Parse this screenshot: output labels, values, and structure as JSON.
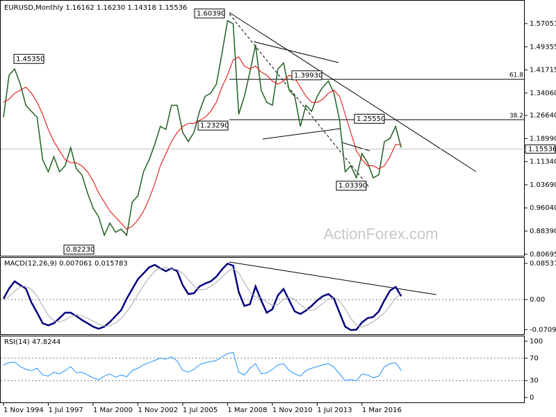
{
  "chart_data": [
    {
      "type": "line",
      "title": "EURUSD,Monthly  1.16162 1.16230 1.14318 1.15536",
      "categories": [
        "1 Nov 1994",
        null,
        null,
        null,
        null,
        null,
        null,
        null,
        "1 Jul 1997",
        null,
        null,
        null,
        null,
        null,
        null,
        null,
        "1 Mar 2000",
        null,
        null,
        null,
        null,
        null,
        null,
        null,
        "1 Nov 2002",
        null,
        null,
        null,
        null,
        null,
        null,
        null,
        "1 Jul 2005",
        null,
        null,
        null,
        null,
        null,
        null,
        null,
        "1 Mar 2008",
        null,
        null,
        null,
        null,
        null,
        null,
        null,
        "1 Nov 2010",
        null,
        null,
        null,
        null,
        null,
        null,
        null,
        "1 Jul 2013",
        null,
        null,
        null,
        null,
        null,
        null,
        null,
        "1 Mar 2016",
        null,
        null,
        null,
        null,
        null,
        null,
        null
      ],
      "series": [
        {
          "color": "#1f5f1f",
          "values": [
            1.26,
            1.4,
            1.42,
            1.37,
            1.3,
            1.28,
            1.26,
            1.12,
            1.08,
            1.13,
            1.08,
            1.1,
            1.16,
            1.09,
            1.07,
            1.01,
            0.96,
            0.93,
            0.87,
            0.91,
            0.88,
            0.89,
            0.87,
            0.98,
            1.0,
            1.08,
            1.12,
            1.17,
            1.23,
            1.22,
            1.3,
            1.3,
            1.21,
            1.18,
            1.21,
            1.28,
            1.33,
            1.34,
            1.37,
            1.47,
            1.58,
            1.57,
            1.27,
            1.33,
            1.41,
            1.5,
            1.35,
            1.31,
            1.3,
            1.42,
            1.44,
            1.35,
            1.33,
            1.23,
            1.3,
            1.28,
            1.33,
            1.36,
            1.38,
            1.34,
            1.25,
            1.08,
            1.1,
            1.06,
            1.14,
            1.11,
            1.06,
            1.07,
            1.18,
            1.19,
            1.23,
            1.16
          ]
        },
        {
          "color": "#e00000",
          "values": [
            1.31,
            1.32,
            1.34,
            1.35,
            1.36,
            1.34,
            1.31,
            1.27,
            1.22,
            1.18,
            1.15,
            1.12,
            1.11,
            1.11,
            1.1,
            1.08,
            1.05,
            1.01,
            0.98,
            0.95,
            0.93,
            0.91,
            0.89,
            0.9,
            0.92,
            0.95,
            0.99,
            1.04,
            1.1,
            1.14,
            1.18,
            1.21,
            1.23,
            1.24,
            1.24,
            1.25,
            1.26,
            1.28,
            1.31,
            1.36,
            1.4,
            1.45,
            1.46,
            1.43,
            1.42,
            1.43,
            1.41,
            1.4,
            1.38,
            1.37,
            1.38,
            1.4,
            1.39,
            1.36,
            1.33,
            1.31,
            1.31,
            1.32,
            1.34,
            1.35,
            1.33,
            1.27,
            1.21,
            1.15,
            1.12,
            1.1,
            1.1,
            1.09,
            1.1,
            1.13,
            1.17,
            1.17
          ]
        }
      ],
      "ylim": [
        0.802,
        1.637
      ],
      "yticks": [
        1.57051,
        1.49355,
        1.41715,
        {
          "value": 1.3406,
          "label": "1.34060"
        },
        {
          "value": 1.2664,
          "label": "1.26640"
        },
        {
          "value": 1.1899,
          "label": "1.18990"
        },
        {
          "value": 1.1134,
          "label": "1.11340"
        },
        {
          "value": 1.0369,
          "label": "1.03690"
        },
        {
          "value": 0.9604,
          "label": "0.96040"
        },
        {
          "value": 0.8839,
          "label": "0.88390"
        },
        0.80695
      ],
      "last_price": 1.15536,
      "annotations": [
        {
          "label": "1.60390",
          "value": 1.6039
        },
        {
          "label": "1.45350",
          "value": 1.4535
        },
        {
          "label": "1.39930",
          "value": 1.3993
        },
        {
          "label": "1.23290",
          "value": 1.2329
        },
        {
          "label": "1.25550",
          "value": 1.2555
        },
        {
          "label": "1.03390",
          "value": 1.0339
        },
        {
          "label": "0.82230",
          "value": 0.8223
        }
      ],
      "fib_levels": [
        {
          "label": "61.8",
          "value": 1.386
        },
        {
          "label": "38.2",
          "value": 1.2522
        }
      ],
      "watermark": "ActionForex.com"
    },
    {
      "type": "line",
      "title": "MACD(12,26,9) 0.007061 0.015783",
      "series": [
        {
          "color": "#000080",
          "values": [
            0.002,
            0.026,
            0.043,
            0.034,
            0.026,
            -0.007,
            -0.031,
            -0.056,
            -0.061,
            -0.056,
            -0.044,
            -0.031,
            -0.031,
            -0.039,
            -0.048,
            -0.056,
            -0.064,
            -0.069,
            -0.064,
            -0.053,
            -0.039,
            -0.025,
            0.002,
            0.025,
            0.048,
            0.062,
            0.076,
            0.082,
            0.074,
            0.067,
            0.074,
            0.067,
            0.034,
            0.013,
            0.015,
            0.031,
            0.038,
            0.043,
            0.054,
            0.071,
            0.085,
            0.08,
            0.018,
            -0.015,
            -0.011,
            0.031,
            -0.002,
            -0.031,
            -0.023,
            0.01,
            0.025,
            -0.002,
            -0.028,
            -0.034,
            -0.026,
            -0.015,
            -0.002,
            0.008,
            0.013,
            0.002,
            -0.031,
            -0.064,
            -0.072,
            -0.071,
            -0.054,
            -0.044,
            -0.041,
            -0.028,
            -0.002,
            0.021,
            0.03,
            0.008
          ]
        },
        {
          "color": "#a8a8a8",
          "values": [
            0.0,
            0.008,
            0.02,
            0.03,
            0.032,
            0.024,
            0.008,
            -0.015,
            -0.037,
            -0.05,
            -0.053,
            -0.048,
            -0.04,
            -0.036,
            -0.038,
            -0.044,
            -0.051,
            -0.058,
            -0.063,
            -0.062,
            -0.055,
            -0.045,
            -0.029,
            -0.01,
            0.012,
            0.033,
            0.052,
            0.067,
            0.074,
            0.075,
            0.073,
            0.071,
            0.062,
            0.047,
            0.032,
            0.023,
            0.024,
            0.031,
            0.041,
            0.053,
            0.066,
            0.073,
            0.063,
            0.04,
            0.018,
            0.006,
            0.004,
            -0.006,
            -0.014,
            -0.012,
            0.0,
            0.006,
            0.0,
            -0.012,
            -0.022,
            -0.026,
            -0.02,
            -0.009,
            0.001,
            0.005,
            -0.003,
            -0.022,
            -0.044,
            -0.06,
            -0.065,
            -0.06,
            -0.052,
            -0.043,
            -0.031,
            -0.015,
            0.003,
            0.016
          ]
        }
      ],
      "ylim": [
        -0.0837,
        0.1002
      ],
      "yticks": [
        0.085379,
        {
          "value": 0,
          "label": "0.00"
        },
        -0.070989
      ],
      "levels": [
        0
      ]
    },
    {
      "type": "line",
      "title": "RSI(14) 47.8244",
      "series": [
        {
          "color": "#1e90ff",
          "values": [
            58,
            62,
            63,
            55,
            50,
            48,
            52,
            40,
            38,
            45,
            42,
            48,
            55,
            44,
            45,
            40,
            35,
            32,
            38,
            42,
            36,
            40,
            37,
            48,
            52,
            58,
            62,
            66,
            70,
            68,
            72,
            65,
            48,
            45,
            50,
            58,
            62,
            64,
            66,
            72,
            78,
            80,
            45,
            40,
            52,
            60,
            42,
            44,
            50,
            58,
            60,
            48,
            42,
            38,
            48,
            52,
            55,
            58,
            60,
            54,
            42,
            30,
            32,
            30,
            42,
            40,
            35,
            38,
            55,
            60,
            62,
            48
          ]
        }
      ],
      "ylim": [
        -9.9,
        109.9
      ],
      "yticks": [
        100,
        70,
        30,
        0
      ],
      "levels": [
        70,
        30
      ]
    }
  ]
}
